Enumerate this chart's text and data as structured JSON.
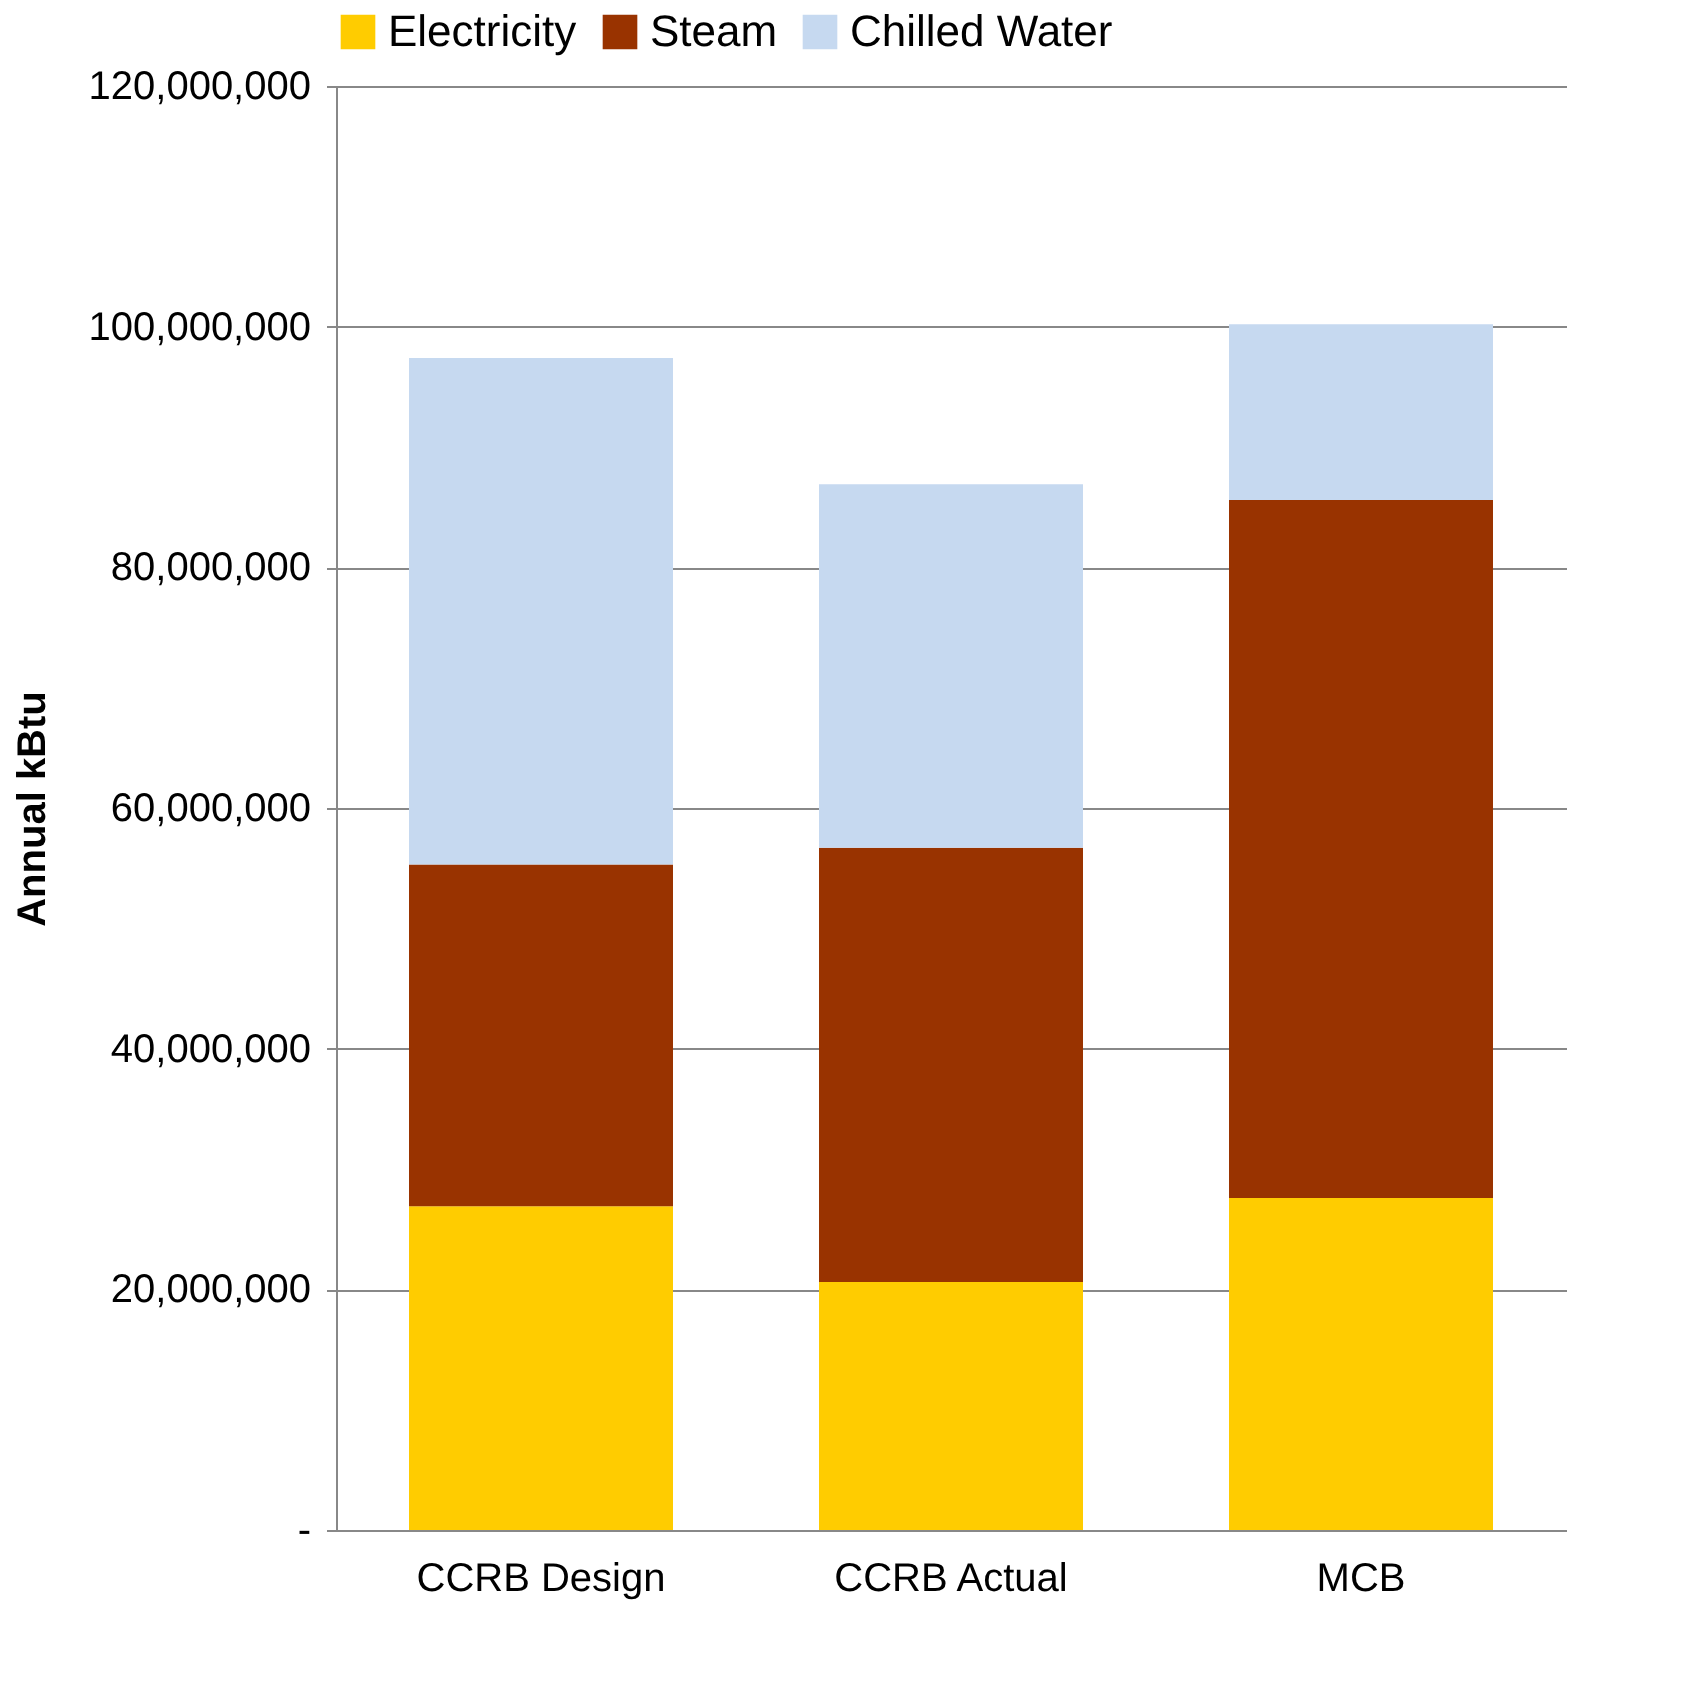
{
  "chart_data": {
    "type": "bar",
    "stacked": true,
    "ylabel": "Annual kBtu",
    "categories": [
      "CCRB Design",
      "CCRB Actual",
      "MCB"
    ],
    "series": [
      {
        "name": "Electricity",
        "color": "#ffcc00",
        "values": [
          26900000,
          20600000,
          27600000
        ]
      },
      {
        "name": "Steam",
        "color": "#993300",
        "values": [
          28400000,
          36100000,
          58000000
        ]
      },
      {
        "name": "Chilled Water",
        "color": "#c6d9f0",
        "values": [
          42100000,
          30200000,
          14600000
        ]
      }
    ],
    "ylim": [
      0,
      120000000
    ],
    "yticks": [
      {
        "value": 0,
        "label": "-"
      },
      {
        "value": 20000000,
        "label": "20,000,000"
      },
      {
        "value": 40000000,
        "label": "40,000,000"
      },
      {
        "value": 60000000,
        "label": "60,000,000"
      },
      {
        "value": 80000000,
        "label": "80,000,000"
      },
      {
        "value": 100000000,
        "label": "100,000,000"
      },
      {
        "value": 120000000,
        "label": "120,000,000"
      }
    ],
    "grid": "y",
    "legend": "top"
  }
}
